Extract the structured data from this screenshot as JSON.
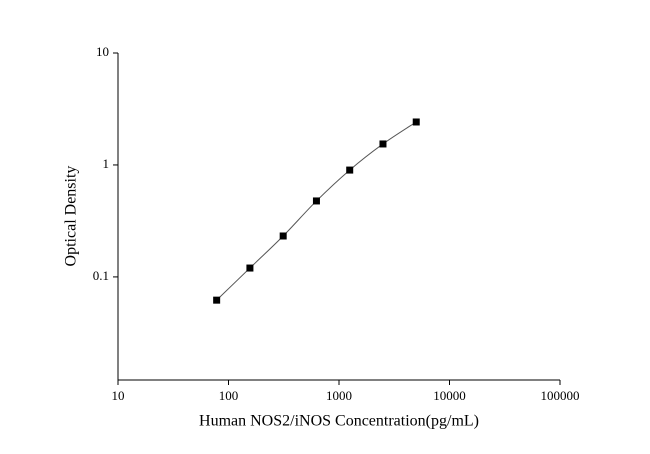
{
  "chart_data": {
    "type": "scatter",
    "x_label": "Human NOS2/iNOS Concentration(pg/mL)",
    "y_label": "Optical Density",
    "x": [
      78.125,
      156.25,
      312.5,
      625,
      1250,
      2500,
      5000
    ],
    "values": [
      0.062,
      0.12,
      0.232,
      0.477,
      0.9,
      1.54,
      2.42
    ],
    "color": "#000000",
    "line": true,
    "xscale": "log",
    "yscale": "log",
    "xlim": [
      10,
      100000
    ],
    "ylim": [
      0.012,
      10
    ],
    "xticks": [
      10,
      100,
      1000,
      10000,
      100000
    ],
    "yticks": [
      0.1,
      1,
      10
    ]
  }
}
